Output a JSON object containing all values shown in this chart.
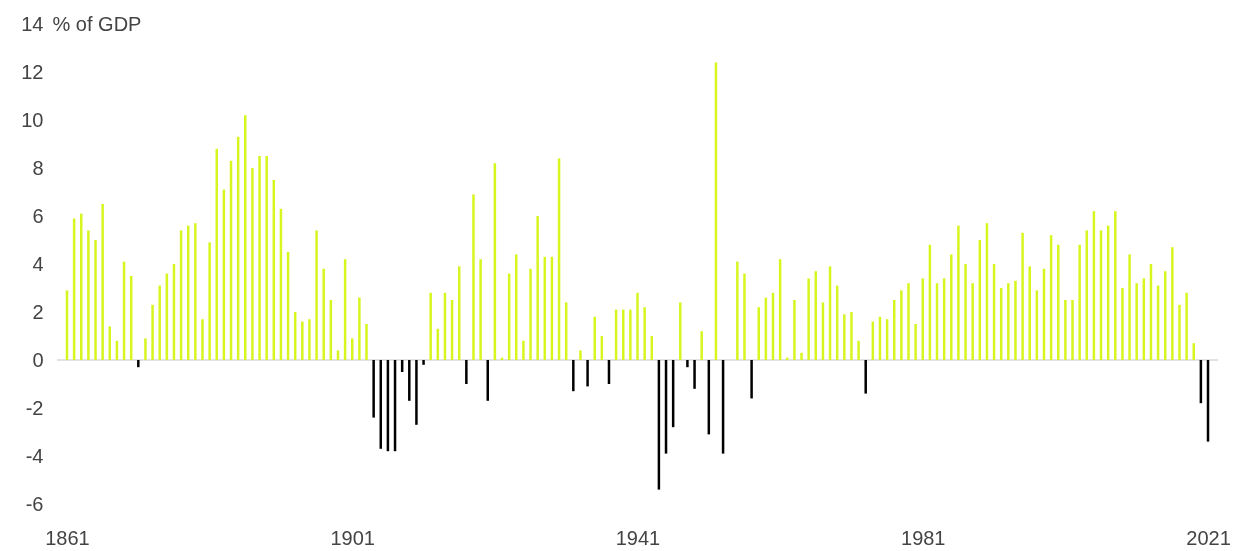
{
  "chart_data": {
    "type": "bar",
    "ylabel": "% of GDP",
    "x": [
      1861,
      1862,
      1863,
      1864,
      1865,
      1866,
      1867,
      1868,
      1869,
      1870,
      1871,
      1872,
      1873,
      1874,
      1875,
      1876,
      1877,
      1878,
      1879,
      1880,
      1881,
      1882,
      1883,
      1884,
      1885,
      1886,
      1887,
      1888,
      1889,
      1890,
      1891,
      1892,
      1893,
      1894,
      1895,
      1896,
      1897,
      1898,
      1899,
      1900,
      1901,
      1902,
      1903,
      1904,
      1905,
      1906,
      1907,
      1908,
      1909,
      1910,
      1911,
      1912,
      1913,
      1914,
      1915,
      1916,
      1917,
      1918,
      1919,
      1920,
      1921,
      1922,
      1923,
      1924,
      1925,
      1926,
      1927,
      1928,
      1929,
      1930,
      1931,
      1932,
      1933,
      1934,
      1935,
      1936,
      1937,
      1938,
      1939,
      1940,
      1941,
      1942,
      1943,
      1944,
      1945,
      1946,
      1947,
      1948,
      1949,
      1950,
      1951,
      1952,
      1953,
      1954,
      1955,
      1956,
      1957,
      1958,
      1959,
      1960,
      1961,
      1962,
      1963,
      1964,
      1965,
      1966,
      1967,
      1968,
      1969,
      1970,
      1971,
      1972,
      1973,
      1974,
      1975,
      1976,
      1977,
      1978,
      1979,
      1980,
      1981,
      1982,
      1983,
      1984,
      1985,
      1986,
      1987,
      1988,
      1989,
      1990,
      1991,
      1992,
      1993,
      1994,
      1995,
      1996,
      1997,
      1998,
      1999,
      2000,
      2001,
      2002,
      2003,
      2004,
      2005,
      2006,
      2007,
      2008,
      2009,
      2010,
      2011,
      2012,
      2013,
      2014,
      2015,
      2016,
      2017,
      2018,
      2019,
      2020,
      2021
    ],
    "values": [
      2.9,
      5.9,
      6.1,
      5.4,
      5.0,
      6.5,
      1.4,
      0.8,
      4.1,
      3.5,
      -0.3,
      0.9,
      2.3,
      3.1,
      3.6,
      4.0,
      5.4,
      5.6,
      5.7,
      1.7,
      4.9,
      8.8,
      7.1,
      8.3,
      9.3,
      10.2,
      8.0,
      8.5,
      8.5,
      7.5,
      6.3,
      4.5,
      2.0,
      1.6,
      1.7,
      5.4,
      3.8,
      2.5,
      0.4,
      4.2,
      0.9,
      2.6,
      1.5,
      -2.4,
      -3.7,
      -3.8,
      -3.8,
      -0.5,
      -1.7,
      -2.7,
      -0.2,
      2.8,
      1.3,
      2.8,
      2.5,
      3.9,
      -1.0,
      6.9,
      4.2,
      -1.7,
      8.2,
      0.1,
      3.6,
      4.4,
      0.8,
      3.8,
      6.0,
      4.3,
      4.3,
      8.4,
      2.4,
      -1.3,
      0.4,
      -1.1,
      1.8,
      1.0,
      -1.0,
      2.1,
      2.1,
      2.1,
      2.8,
      2.2,
      1.0,
      -5.4,
      -3.9,
      -2.8,
      2.4,
      -0.3,
      -1.2,
      1.2,
      -3.1,
      12.4,
      -3.9,
      0,
      4.1,
      3.6,
      -1.6,
      2.2,
      2.6,
      2.8,
      4.2,
      0.1,
      2.5,
      0.3,
      3.4,
      3.7,
      2.4,
      3.9,
      3.1,
      1.9,
      2.0,
      0.8,
      -1.4,
      1.6,
      1.8,
      1.7,
      2.5,
      2.9,
      3.2,
      1.5,
      3.4,
      4.8,
      3.2,
      3.4,
      4.4,
      5.6,
      4.0,
      3.2,
      5.0,
      5.7,
      4.0,
      3.0,
      3.2,
      3.3,
      5.3,
      3.9,
      2.9,
      3.8,
      5.2,
      4.8,
      2.5,
      2.5,
      4.8,
      5.4,
      6.2,
      5.4,
      5.6,
      6.2,
      3.0,
      4.4,
      3.2,
      3.4,
      4.0,
      3.1,
      3.7,
      4.7,
      2.3,
      2.8,
      0.7,
      -1.8,
      -3.4
    ],
    "colors": [
      "#d7f51e",
      "#d7f51e",
      "#d7f51e",
      "#d7f51e",
      "#d7f51e",
      "#d7f51e",
      "#d7f51e",
      "#d7f51e",
      "#d7f51e",
      "#d7f51e",
      "#000000",
      "#d7f51e",
      "#d7f51e",
      "#d7f51e",
      "#d7f51e",
      "#d7f51e",
      "#d7f51e",
      "#d7f51e",
      "#d7f51e",
      "#d7f51e",
      "#d7f51e",
      "#d7f51e",
      "#d7f51e",
      "#d7f51e",
      "#d7f51e",
      "#d7f51e",
      "#d7f51e",
      "#d7f51e",
      "#d7f51e",
      "#d7f51e",
      "#d7f51e",
      "#d7f51e",
      "#d7f51e",
      "#d7f51e",
      "#d7f51e",
      "#d7f51e",
      "#d7f51e",
      "#d7f51e",
      "#d7f51e",
      "#d7f51e",
      "#d7f51e",
      "#d7f51e",
      "#d7f51e",
      "#000000",
      "#000000",
      "#000000",
      "#000000",
      "#000000",
      "#000000",
      "#000000",
      "#000000",
      "#d7f51e",
      "#d7f51e",
      "#d7f51e",
      "#d7f51e",
      "#d7f51e",
      "#000000",
      "#d7f51e",
      "#d7f51e",
      "#000000",
      "#d7f51e",
      "#d7f51e",
      "#d7f51e",
      "#d7f51e",
      "#d7f51e",
      "#d7f51e",
      "#d7f51e",
      "#d7f51e",
      "#d7f51e",
      "#d7f51e",
      "#d7f51e",
      "#000000",
      "#d7f51e",
      "#000000",
      "#d7f51e",
      "#d7f51e",
      "#000000",
      "#d7f51e",
      "#d7f51e",
      "#d7f51e",
      "#d7f51e",
      "#d7f51e",
      "#d7f51e",
      "#000000",
      "#000000",
      "#000000",
      "#d7f51e",
      "#000000",
      "#000000",
      "#d7f51e",
      "#000000",
      "#d7f51e",
      "#000000",
      "#d7f51e",
      "#d7f51e",
      "#d7f51e",
      "#000000",
      "#d7f51e",
      "#d7f51e",
      "#d7f51e",
      "#d7f51e",
      "#d7f51e",
      "#d7f51e",
      "#d7f51e",
      "#d7f51e",
      "#d7f51e",
      "#d7f51e",
      "#d7f51e",
      "#d7f51e",
      "#d7f51e",
      "#d7f51e",
      "#d7f51e",
      "#000000",
      "#d7f51e",
      "#d7f51e",
      "#d7f51e",
      "#d7f51e",
      "#d7f51e",
      "#d7f51e",
      "#d7f51e",
      "#d7f51e",
      "#d7f51e",
      "#d7f51e",
      "#d7f51e",
      "#d7f51e",
      "#d7f51e",
      "#d7f51e",
      "#d7f51e",
      "#d7f51e",
      "#d7f51e",
      "#d7f51e",
      "#d7f51e",
      "#d7f51e",
      "#d7f51e",
      "#d7f51e",
      "#d7f51e",
      "#d7f51e",
      "#d7f51e",
      "#d7f51e",
      "#d7f51e",
      "#d7f51e",
      "#d7f51e",
      "#d7f51e",
      "#d7f51e",
      "#d7f51e",
      "#d7f51e",
      "#d7f51e",
      "#d7f51e",
      "#d7f51e",
      "#d7f51e",
      "#d7f51e",
      "#d7f51e",
      "#d7f51e",
      "#d7f51e",
      "#d7f51e",
      "#d7f51e",
      "#d7f51e",
      "#d7f51e",
      "#d7f51e",
      "#000000",
      "#000000"
    ],
    "xlim": [
      1860.3,
      2021.7
    ],
    "xticks": [
      1861,
      1901,
      1941,
      1981,
      2021
    ],
    "ylim": [
      -6,
      14
    ],
    "yticks": [
      -6,
      -4,
      -2,
      0,
      2,
      4,
      6,
      8,
      10,
      12,
      14
    ],
    "ref_lines": [
      {
        "axis": "y",
        "value": 0,
        "color": "#d9d9d9"
      }
    ]
  }
}
